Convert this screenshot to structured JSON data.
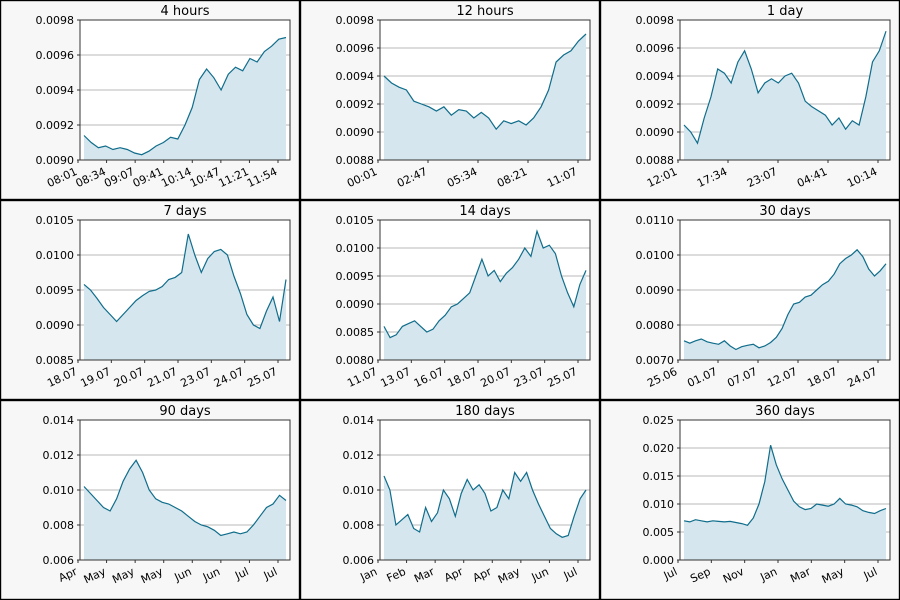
{
  "style": {
    "line_color": "#0f6d8b",
    "fill_color": "#d6e6ee",
    "panel_background": "#f7f7f7",
    "plot_background": "#ffffff",
    "grid_color": "#b8b8b8",
    "grid": true
  },
  "chart_data": [
    {
      "type": "area",
      "title": "4 hours",
      "ylim": [
        0.009,
        0.0098
      ],
      "yticks": [
        "0.0090",
        "0.0092",
        "0.0094",
        "0.0096",
        "0.0098"
      ],
      "xticks": [
        "08:01",
        "08:34",
        "09:07",
        "09:41",
        "10:14",
        "10:47",
        "11:21",
        "11:54"
      ],
      "series": [
        {
          "values": [
            0.00914,
            0.0091,
            0.00907,
            0.00908,
            0.00906,
            0.00907,
            0.00906,
            0.00904,
            0.00903,
            0.00905,
            0.00908,
            0.0091,
            0.00913,
            0.00912,
            0.0092,
            0.0093,
            0.00946,
            0.00952,
            0.00947,
            0.0094,
            0.00949,
            0.00953,
            0.00951,
            0.00958,
            0.00956,
            0.00962,
            0.00965,
            0.00969,
            0.0097
          ]
        }
      ]
    },
    {
      "type": "area",
      "title": "12 hours",
      "ylim": [
        0.0088,
        0.0098
      ],
      "yticks": [
        "0.0088",
        "0.0090",
        "0.0092",
        "0.0094",
        "0.0096",
        "0.0098"
      ],
      "xticks": [
        "00:01",
        "02:47",
        "05:34",
        "08:21",
        "11:07"
      ],
      "series": [
        {
          "values": [
            0.0094,
            0.00935,
            0.00932,
            0.0093,
            0.00922,
            0.0092,
            0.00918,
            0.00915,
            0.00918,
            0.00912,
            0.00916,
            0.00915,
            0.0091,
            0.00914,
            0.0091,
            0.00902,
            0.00908,
            0.00906,
            0.00908,
            0.00905,
            0.0091,
            0.00918,
            0.0093,
            0.0095,
            0.00955,
            0.00958,
            0.00965,
            0.0097
          ]
        }
      ]
    },
    {
      "type": "area",
      "title": "1 day",
      "ylim": [
        0.0088,
        0.0098
      ],
      "yticks": [
        "0.0088",
        "0.0090",
        "0.0092",
        "0.0094",
        "0.0096",
        "0.0098"
      ],
      "xticks": [
        "12:01",
        "17:34",
        "23:07",
        "04:41",
        "10:14"
      ],
      "series": [
        {
          "values": [
            0.00905,
            0.009,
            0.00892,
            0.0091,
            0.00925,
            0.00945,
            0.00942,
            0.00935,
            0.0095,
            0.00958,
            0.00945,
            0.00928,
            0.00935,
            0.00938,
            0.00935,
            0.0094,
            0.00942,
            0.00935,
            0.00922,
            0.00918,
            0.00915,
            0.00912,
            0.00905,
            0.0091,
            0.00902,
            0.00908,
            0.00905,
            0.00925,
            0.0095,
            0.00958,
            0.00972
          ]
        }
      ]
    },
    {
      "type": "area",
      "title": "7 days",
      "ylim": [
        0.0085,
        0.0105
      ],
      "yticks": [
        "0.0085",
        "0.0090",
        "0.0095",
        "0.0100",
        "0.0105"
      ],
      "xticks": [
        "18.07",
        "19.07",
        "20.07",
        "21.07",
        "23.07",
        "24.07",
        "25.07"
      ],
      "series": [
        {
          "values": [
            0.00958,
            0.0095,
            0.00938,
            0.00925,
            0.00915,
            0.00905,
            0.00915,
            0.00925,
            0.00935,
            0.00942,
            0.00948,
            0.0095,
            0.00955,
            0.00965,
            0.00968,
            0.00975,
            0.0103,
            0.01,
            0.00975,
            0.00995,
            0.01005,
            0.01008,
            0.01,
            0.0097,
            0.00945,
            0.00915,
            0.009,
            0.00895,
            0.0092,
            0.0094,
            0.00905,
            0.00965
          ]
        }
      ]
    },
    {
      "type": "area",
      "title": "14 days",
      "ylim": [
        0.008,
        0.0105
      ],
      "yticks": [
        "0.0080",
        "0.0085",
        "0.0090",
        "0.0095",
        "0.0100",
        "0.0105"
      ],
      "xticks": [
        "11.07",
        "13.07",
        "16.07",
        "18.07",
        "20.07",
        "23.07",
        "25.07"
      ],
      "series": [
        {
          "values": [
            0.0086,
            0.0084,
            0.00845,
            0.0086,
            0.00865,
            0.0087,
            0.0086,
            0.0085,
            0.00855,
            0.0087,
            0.0088,
            0.00895,
            0.009,
            0.0091,
            0.0092,
            0.0095,
            0.0098,
            0.0095,
            0.0096,
            0.0094,
            0.00955,
            0.00965,
            0.0098,
            0.01,
            0.00985,
            0.0103,
            0.01,
            0.01005,
            0.0099,
            0.0095,
            0.0092,
            0.00895,
            0.00935,
            0.0096
          ]
        }
      ]
    },
    {
      "type": "area",
      "title": "30 days",
      "ylim": [
        0.007,
        0.011
      ],
      "yticks": [
        "0.0070",
        "0.0080",
        "0.0090",
        "0.0100",
        "0.0110"
      ],
      "xticks": [
        "25.06",
        "01.07",
        "07.07",
        "12.07",
        "18.07",
        "24.07"
      ],
      "series": [
        {
          "values": [
            0.00755,
            0.00748,
            0.00755,
            0.0076,
            0.00752,
            0.00748,
            0.00745,
            0.00755,
            0.0074,
            0.0073,
            0.00738,
            0.00742,
            0.00745,
            0.00735,
            0.0074,
            0.0075,
            0.00765,
            0.0079,
            0.0083,
            0.0086,
            0.00865,
            0.0088,
            0.00885,
            0.009,
            0.00915,
            0.00925,
            0.00945,
            0.00975,
            0.0099,
            0.01,
            0.01015,
            0.00995,
            0.0096,
            0.0094,
            0.00955,
            0.00975
          ]
        }
      ]
    },
    {
      "type": "area",
      "title": "90 days",
      "ylim": [
        0.006,
        0.014
      ],
      "yticks": [
        "0.006",
        "0.008",
        "0.010",
        "0.012",
        "0.014"
      ],
      "xticks": [
        "Apr",
        "May",
        "May",
        "May",
        "Jun",
        "Jun",
        "Jul",
        "Jul"
      ],
      "series": [
        {
          "values": [
            0.0102,
            0.0098,
            0.0094,
            0.009,
            0.0088,
            0.0095,
            0.0105,
            0.0112,
            0.0117,
            0.011,
            0.01,
            0.0095,
            0.0093,
            0.0092,
            0.009,
            0.0088,
            0.0085,
            0.0082,
            0.008,
            0.0079,
            0.0077,
            0.0074,
            0.0075,
            0.0076,
            0.0075,
            0.0076,
            0.008,
            0.0085,
            0.009,
            0.0092,
            0.0097,
            0.0094
          ]
        }
      ]
    },
    {
      "type": "area",
      "title": "180 days",
      "ylim": [
        0.006,
        0.014
      ],
      "yticks": [
        "0.006",
        "0.008",
        "0.010",
        "0.012",
        "0.014"
      ],
      "xticks": [
        "Jan",
        "Feb",
        "Mar",
        "Apr",
        "Apr",
        "May",
        "Jun",
        "Jul"
      ],
      "series": [
        {
          "values": [
            0.0108,
            0.01,
            0.008,
            0.0083,
            0.0086,
            0.0078,
            0.0076,
            0.009,
            0.0082,
            0.0087,
            0.01,
            0.0095,
            0.0085,
            0.0098,
            0.0106,
            0.01,
            0.0103,
            0.0098,
            0.0088,
            0.009,
            0.01,
            0.0095,
            0.011,
            0.0105,
            0.011,
            0.01,
            0.0092,
            0.0085,
            0.0078,
            0.0075,
            0.0073,
            0.0074,
            0.0085,
            0.0095,
            0.01
          ]
        }
      ]
    },
    {
      "type": "area",
      "title": "360 days",
      "ylim": [
        0.0,
        0.025
      ],
      "yticks": [
        "0.000",
        "0.005",
        "0.010",
        "0.015",
        "0.020",
        "0.025"
      ],
      "xticks": [
        "Jul",
        "Sep",
        "Nov",
        "Jan",
        "Mar",
        "May",
        "Jul"
      ],
      "series": [
        {
          "values": [
            0.007,
            0.0068,
            0.0072,
            0.007,
            0.0068,
            0.007,
            0.0069,
            0.0068,
            0.0069,
            0.0067,
            0.0065,
            0.0062,
            0.0075,
            0.01,
            0.014,
            0.0205,
            0.017,
            0.0145,
            0.0125,
            0.0105,
            0.0095,
            0.009,
            0.0092,
            0.01,
            0.0098,
            0.0096,
            0.01,
            0.011,
            0.01,
            0.0098,
            0.0095,
            0.0088,
            0.0085,
            0.0083,
            0.0088,
            0.0092
          ]
        }
      ]
    }
  ]
}
